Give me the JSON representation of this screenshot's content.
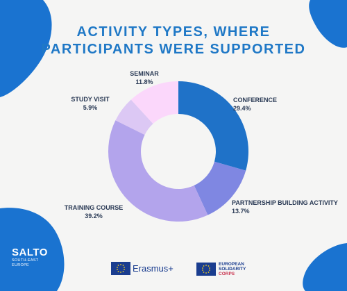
{
  "title": {
    "line1": "ACTIVITY TYPES, WHERE",
    "line2": "PARTICIPANTS WERE SUPPORTED"
  },
  "chart_data": {
    "type": "pie",
    "variant": "donut",
    "categories": [
      "Conference",
      "Partnership Building Activity",
      "Training Course",
      "Study Visit",
      "Seminar"
    ],
    "values": [
      29.4,
      13.7,
      39.2,
      5.9,
      11.8
    ],
    "colors": [
      "#1f72c8",
      "#7f87e2",
      "#b3a4ec",
      "#dcc8f4",
      "#fbd7fb"
    ],
    "labels": [
      {
        "name": "CONFERENCE",
        "value": "29.4%"
      },
      {
        "name": "PARTNERSHIP BUILDING ACTIVITY",
        "value": "13.7%"
      },
      {
        "name": "TRAINING COURSE",
        "value": "39.2%"
      },
      {
        "name": "STUDY VISIT",
        "value": "5.9%"
      },
      {
        "name": "SEMINAR",
        "value": "11.8%"
      }
    ]
  },
  "footer": {
    "salto_brand": "SALTO",
    "salto_sub1": "SOUTH-EAST",
    "salto_sub2": "EUROPE",
    "erasmus": "Erasmus+",
    "esc_line1": "EUROPEAN",
    "esc_line2": "SOLIDARITY",
    "esc_line3": "CORPS"
  },
  "colors": {
    "accent": "#1f78c6",
    "blob": "#1a73d0",
    "background": "#f5f5f4"
  }
}
